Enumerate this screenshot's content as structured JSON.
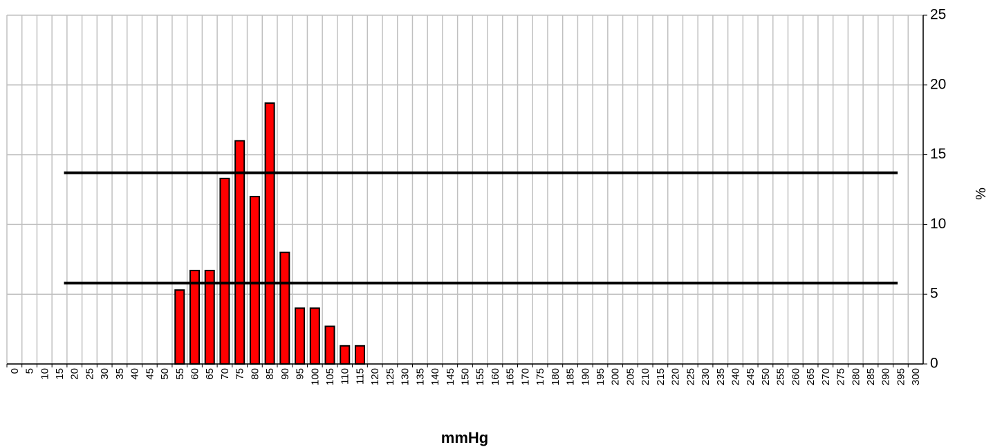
{
  "chart_data": {
    "type": "bar",
    "x_label": "mmHg",
    "y_label": "%",
    "categories": [
      0,
      5,
      10,
      15,
      20,
      25,
      30,
      35,
      40,
      45,
      50,
      55,
      60,
      65,
      70,
      75,
      80,
      85,
      90,
      95,
      100,
      105,
      110,
      115,
      120,
      125,
      130,
      135,
      140,
      145,
      150,
      155,
      160,
      165,
      170,
      175,
      180,
      185,
      190,
      195,
      200,
      205,
      210,
      215,
      220,
      225,
      230,
      235,
      240,
      245,
      250,
      255,
      260,
      265,
      270,
      275,
      280,
      285,
      290,
      295,
      300
    ],
    "values": [
      null,
      null,
      null,
      null,
      null,
      null,
      null,
      null,
      null,
      null,
      null,
      5.3,
      6.7,
      6.7,
      13.3,
      16,
      12,
      18.7,
      8,
      4,
      4,
      2.7,
      1.3,
      1.3,
      null,
      null,
      null,
      null,
      null,
      null,
      null,
      null,
      null,
      null,
      null,
      null,
      null,
      null,
      null,
      null,
      null,
      null,
      null,
      null,
      null,
      null,
      null,
      null,
      null,
      null,
      null,
      null,
      null,
      null,
      null,
      null,
      null,
      null,
      null,
      null,
      null
    ],
    "color": "#ff0000",
    "reference_lines": [
      13.7,
      5.8
    ],
    "ylim": [
      0,
      25
    ],
    "yticks": [
      0,
      5,
      10,
      15,
      20,
      25
    ],
    "y_axis_side": "right",
    "grid": true
  }
}
